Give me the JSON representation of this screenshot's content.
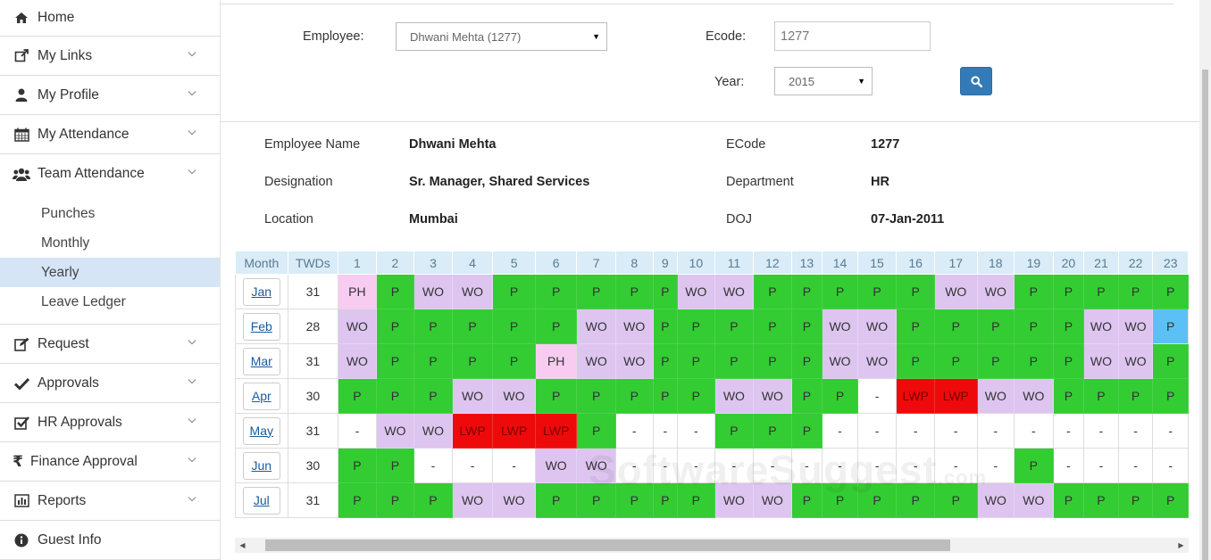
{
  "sidebar": {
    "items": [
      {
        "label": "Home",
        "icon": "home-icon"
      },
      {
        "label": "My Links",
        "icon": "external-link-icon"
      },
      {
        "label": "My Profile",
        "icon": "user-icon"
      },
      {
        "label": "My Attendance",
        "icon": "calendar-icon"
      },
      {
        "label": "Team Attendance",
        "icon": "users-icon"
      },
      {
        "label": "Request",
        "icon": "edit-icon"
      },
      {
        "label": "Approvals",
        "icon": "check-icon"
      },
      {
        "label": "HR Approvals",
        "icon": "check-square-icon"
      },
      {
        "label": "Finance Approval",
        "icon": "rupee-icon"
      },
      {
        "label": "Reports",
        "icon": "bar-chart-icon"
      },
      {
        "label": "Guest Info",
        "icon": "info-icon"
      }
    ],
    "team_sub": [
      {
        "label": "Punches"
      },
      {
        "label": "Monthly"
      },
      {
        "label": "Yearly",
        "active": true
      },
      {
        "label": "Leave Ledger"
      }
    ]
  },
  "filters": {
    "employee_label": "Employee:",
    "employee_value": "Dhwani Mehta (1277)",
    "ecode_label": "Ecode:",
    "ecode_value": "1277",
    "year_label": "Year:",
    "year_value": "2015"
  },
  "info": {
    "name_label": "Employee Name",
    "name_value": "Dhwani Mehta",
    "ecode_label": "ECode",
    "ecode_value": "1277",
    "designation_label": "Designation",
    "designation_value": "Sr. Manager, Shared Services",
    "department_label": "Department",
    "department_value": "HR",
    "location_label": "Location",
    "location_value": "Mumbai",
    "doj_label": "DOJ",
    "doj_value": "07-Jan-2011"
  },
  "table": {
    "headers": [
      "Month",
      "TWDs",
      "1",
      "2",
      "3",
      "4",
      "5",
      "6",
      "7",
      "8",
      "9",
      "10",
      "11",
      "12",
      "13",
      "14",
      "15",
      "16",
      "17",
      "18",
      "19",
      "20",
      "21",
      "22",
      "23"
    ],
    "rows": [
      {
        "month": "Jan",
        "twd": "31",
        "days": [
          "PH",
          "P",
          "WO",
          "WO",
          "P",
          "P",
          "P",
          "P",
          "P",
          "WO",
          "WO",
          "P",
          "P",
          "P",
          "P",
          "P",
          "WO",
          "WO",
          "P",
          "P",
          "P",
          "P",
          "P"
        ]
      },
      {
        "month": "Feb",
        "twd": "28",
        "days": [
          "WO",
          "P",
          "P",
          "P",
          "P",
          "P",
          "WO",
          "WO",
          "P",
          "P",
          "P",
          "P",
          "P",
          "WO",
          "WO",
          "P",
          "P",
          "P",
          "P",
          "P",
          "WO",
          "WO",
          "P"
        ]
      },
      {
        "month": "Mar",
        "twd": "31",
        "days": [
          "WO",
          "P",
          "P",
          "P",
          "P",
          "PH",
          "WO",
          "WO",
          "P",
          "P",
          "P",
          "P",
          "P",
          "WO",
          "WO",
          "P",
          "P",
          "P",
          "P",
          "P",
          "WO",
          "WO",
          "P"
        ]
      },
      {
        "month": "Apr",
        "twd": "30",
        "days": [
          "P",
          "P",
          "P",
          "WO",
          "WO",
          "P",
          "P",
          "P",
          "P",
          "P",
          "WO",
          "WO",
          "P",
          "P",
          "-",
          "LWP",
          "LWP",
          "WO",
          "WO",
          "P",
          "P",
          "P",
          "P"
        ]
      },
      {
        "month": "May",
        "twd": "31",
        "days": [
          "-",
          "WO",
          "WO",
          "LWP",
          "LWP",
          "LWP",
          "P",
          "-",
          "-",
          "-",
          "P",
          "P",
          "P",
          "-",
          "-",
          "-",
          "-",
          "-",
          "-",
          "-",
          "-",
          "-",
          "-"
        ]
      },
      {
        "month": "Jun",
        "twd": "30",
        "days": [
          "P",
          "P",
          "-",
          "-",
          "-",
          "WO",
          "WO",
          "-",
          "-",
          "-",
          "-",
          "-",
          "-",
          "-",
          "-",
          "-",
          "-",
          "-",
          "P",
          "-",
          "-",
          "-",
          "-"
        ]
      },
      {
        "month": "Jul",
        "twd": "31",
        "days": [
          "P",
          "P",
          "P",
          "WO",
          "WO",
          "P",
          "P",
          "P",
          "P",
          "P",
          "WO",
          "WO",
          "P",
          "P",
          "P",
          "P",
          "P",
          "WO",
          "WO",
          "P",
          "P",
          "P",
          "P"
        ]
      }
    ]
  },
  "watermark": {
    "main": "SoftwareSuggest",
    "suffix": ".com"
  }
}
